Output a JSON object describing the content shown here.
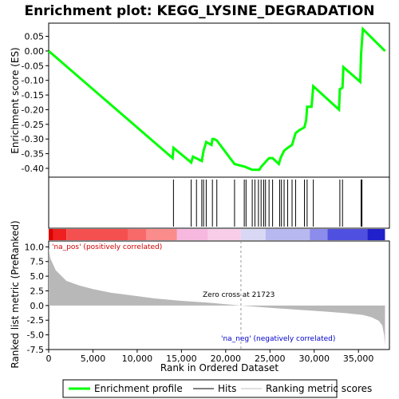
{
  "chart_data": {
    "type": "line",
    "title": "Enrichment plot: KEGG_LYSINE_DEGRADATION",
    "top_panel": {
      "ylabel": "Enrichment score (ES)",
      "ylim": [
        -0.43,
        0.095
      ],
      "yticks": [
        "0.05",
        "0.00",
        "-0.05",
        "-0.10",
        "-0.15",
        "-0.20",
        "-0.25",
        "-0.30",
        "-0.35",
        "-0.40"
      ],
      "ytick_values": [
        0.05,
        0.0,
        -0.05,
        -0.1,
        -0.15,
        -0.2,
        -0.25,
        -0.3,
        -0.35,
        -0.4
      ],
      "series": {
        "name": "Enrichment profile",
        "color": "#00ff00",
        "points": [
          [
            0,
            0.0
          ],
          [
            14000,
            -0.365
          ],
          [
            14100,
            -0.33
          ],
          [
            16100,
            -0.38
          ],
          [
            16300,
            -0.36
          ],
          [
            17300,
            -0.375
          ],
          [
            17500,
            -0.34
          ],
          [
            17800,
            -0.31
          ],
          [
            18400,
            -0.32
          ],
          [
            18500,
            -0.3
          ],
          [
            18700,
            -0.3
          ],
          [
            19000,
            -0.305
          ],
          [
            21000,
            -0.385
          ],
          [
            22200,
            -0.395
          ],
          [
            23000,
            -0.405
          ],
          [
            23800,
            -0.405
          ],
          [
            24000,
            -0.395
          ],
          [
            24300,
            -0.385
          ],
          [
            24600,
            -0.375
          ],
          [
            24900,
            -0.365
          ],
          [
            25300,
            -0.365
          ],
          [
            26000,
            -0.385
          ],
          [
            26200,
            -0.365
          ],
          [
            26600,
            -0.34
          ],
          [
            27000,
            -0.33
          ],
          [
            27500,
            -0.32
          ],
          [
            27900,
            -0.28
          ],
          [
            28300,
            -0.27
          ],
          [
            28900,
            -0.26
          ],
          [
            29100,
            -0.235
          ],
          [
            29200,
            -0.19
          ],
          [
            29700,
            -0.19
          ],
          [
            29900,
            -0.12
          ],
          [
            32800,
            -0.2
          ],
          [
            32900,
            -0.13
          ],
          [
            33200,
            -0.125
          ],
          [
            33300,
            -0.055
          ],
          [
            35200,
            -0.105
          ],
          [
            35300,
            -0.01
          ],
          [
            35500,
            0.075
          ],
          [
            38000,
            0.0
          ]
        ]
      }
    },
    "hits": {
      "name": "Hits",
      "positions": [
        14100,
        16100,
        16700,
        17300,
        17500,
        17800,
        18500,
        19000,
        21000,
        22100,
        22300,
        23000,
        23300,
        23700,
        24000,
        24300,
        24500,
        24900,
        25300,
        26100,
        26300,
        26600,
        27000,
        27500,
        27900,
        28900,
        29200,
        29900,
        32900,
        33200,
        35300,
        35400
      ]
    },
    "ranked_metric": {
      "name": "Ranking metric scores",
      "ylabel": "Ranked list metric (PreRanked)",
      "ylim": [
        -7.5,
        11.0
      ],
      "yticks": [
        "10.0",
        "7.5",
        "5.0",
        "2.5",
        "0.0",
        "-2.5",
        "-5.0",
        "-7.5"
      ],
      "ytick_values": [
        10.0,
        7.5,
        5.0,
        2.5,
        0.0,
        -2.5,
        -5.0,
        -7.5
      ],
      "points": [
        [
          0,
          9.8
        ],
        [
          200,
          8.0
        ],
        [
          800,
          6.0
        ],
        [
          2000,
          4.2
        ],
        [
          3500,
          3.4
        ],
        [
          5000,
          2.8
        ],
        [
          7000,
          2.2
        ],
        [
          9000,
          1.8
        ],
        [
          12000,
          1.2
        ],
        [
          15000,
          0.8
        ],
        [
          18000,
          0.5
        ],
        [
          21723,
          0.0
        ],
        [
          25000,
          -0.4
        ],
        [
          28000,
          -0.7
        ],
        [
          31000,
          -1.0
        ],
        [
          33500,
          -1.3
        ],
        [
          35500,
          -1.6
        ],
        [
          36500,
          -2.0
        ],
        [
          37300,
          -2.6
        ],
        [
          37700,
          -3.4
        ],
        [
          37900,
          -5.0
        ],
        [
          38000,
          -6.8
        ]
      ],
      "color": "#b8b8b8"
    },
    "xlabel": "Rank in Ordered Dataset",
    "xlim": [
      0,
      38500
    ],
    "xticks": [
      "0",
      "5,000",
      "10,000",
      "15,000",
      "20,000",
      "25,000",
      "30,000",
      "35,000"
    ],
    "xtick_values": [
      0,
      5000,
      10000,
      15000,
      20000,
      25000,
      30000,
      35000
    ],
    "zero_cross": 21723,
    "annotations": {
      "pos_label": "'na_pos' (positively correlated)",
      "neg_label": "'na_neg' (negatively correlated)",
      "zero_cross_label": "Zero cross at 21723",
      "pos_color": "#cc0000",
      "neg_color": "#0000cc"
    },
    "color_bar": {
      "segments": [
        {
          "from": 0,
          "to": 500,
          "color": "#dd0000"
        },
        {
          "from": 500,
          "to": 2000,
          "color": "#ee2020"
        },
        {
          "from": 2000,
          "to": 9000,
          "color": "#f55050"
        },
        {
          "from": 9000,
          "to": 11000,
          "color": "#f86a6a"
        },
        {
          "from": 11000,
          "to": 14500,
          "color": "#fb8c8c"
        },
        {
          "from": 14500,
          "to": 18000,
          "color": "#f7b8e0"
        },
        {
          "from": 18000,
          "to": 21723,
          "color": "#f8cde8"
        },
        {
          "from": 21723,
          "to": 24500,
          "color": "#d8d8f4"
        },
        {
          "from": 24500,
          "to": 29500,
          "color": "#b8b8f0"
        },
        {
          "from": 29500,
          "to": 31500,
          "color": "#8c8cec"
        },
        {
          "from": 31500,
          "to": 36000,
          "color": "#5050e0"
        },
        {
          "from": 36000,
          "to": 38000,
          "color": "#2020cc"
        }
      ]
    },
    "legend": {
      "items": [
        {
          "label": "Enrichment profile",
          "color": "#00ff00"
        },
        {
          "label": "Hits",
          "color": "#000000"
        },
        {
          "label": "Ranking metric scores",
          "color": "#c0c0c0"
        }
      ],
      "placement": "bottom"
    }
  }
}
